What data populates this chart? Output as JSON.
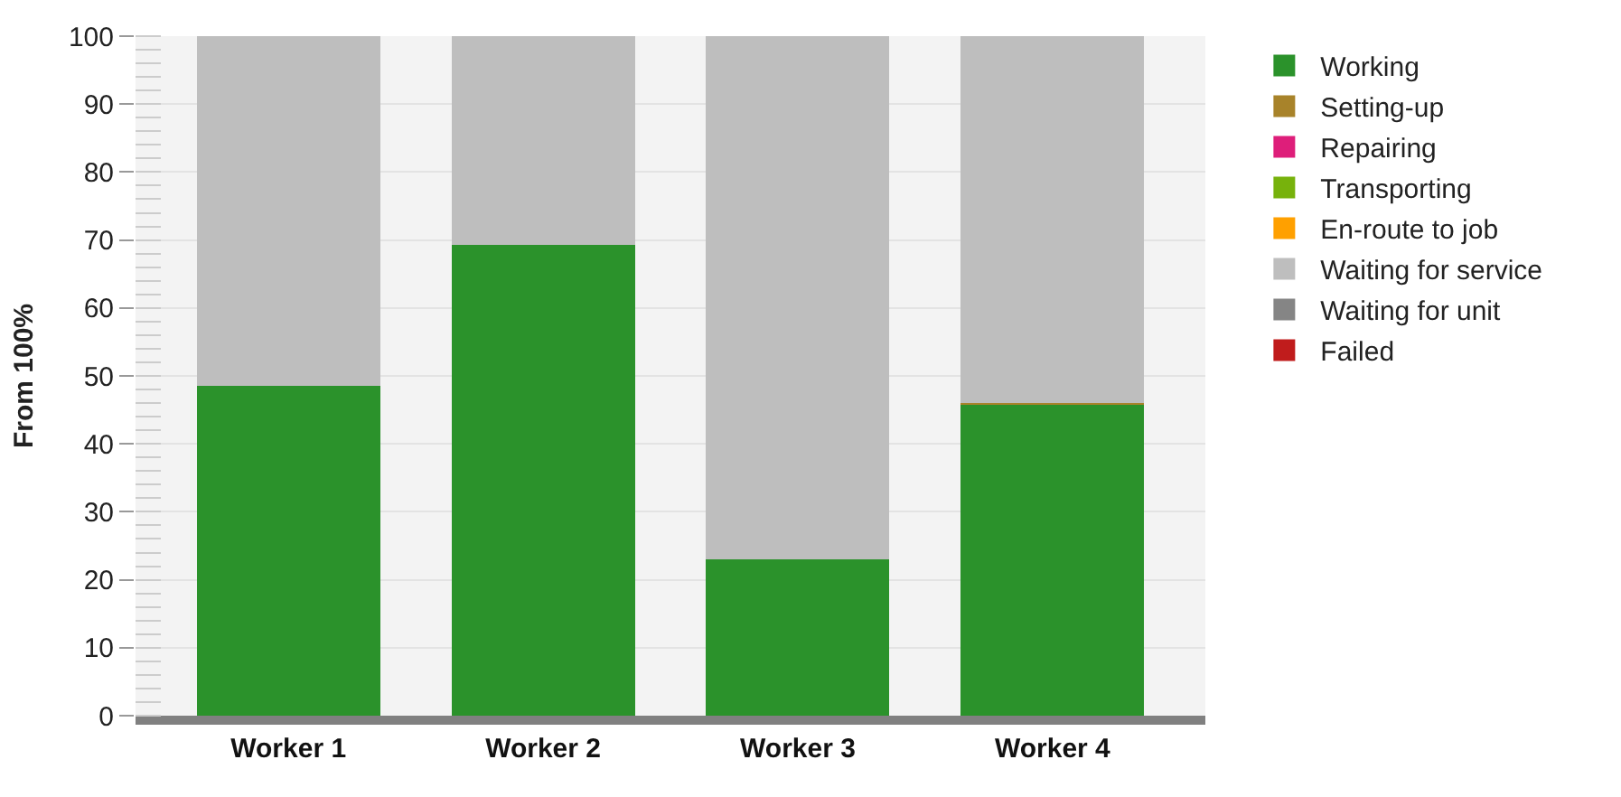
{
  "chart_data": {
    "type": "bar",
    "stacked": true,
    "ylabel": "From 100%",
    "categories": [
      "Worker 1",
      "Worker 2",
      "Worker 3",
      "Worker 4"
    ],
    "series": [
      {
        "name": "Working",
        "color": "#2b922b",
        "values": [
          48.5,
          69.3,
          23.0,
          45.8
        ]
      },
      {
        "name": "Setting-up",
        "color": "#a8832a",
        "values": [
          0,
          0,
          0,
          0.2
        ]
      },
      {
        "name": "Repairing",
        "color": "#de1e7a",
        "values": [
          0,
          0,
          0,
          0
        ]
      },
      {
        "name": "Transporting",
        "color": "#77b20c",
        "values": [
          0,
          0,
          0,
          0
        ]
      },
      {
        "name": "En-route to job",
        "color": "#ffa000",
        "values": [
          0,
          0,
          0,
          0
        ]
      },
      {
        "name": "Waiting for service",
        "color": "#bebebe",
        "values": [
          51.5,
          30.7,
          77.0,
          54.0
        ]
      },
      {
        "name": "Waiting for unit",
        "color": "#858585",
        "values": [
          0,
          0,
          0,
          0
        ]
      },
      {
        "name": "Failed",
        "color": "#c01c1c",
        "values": [
          0,
          0,
          0,
          0
        ]
      }
    ],
    "ylim": [
      0,
      100
    ],
    "yticks": [
      0,
      10,
      20,
      30,
      40,
      50,
      60,
      70,
      80,
      90,
      100
    ],
    "grid": true,
    "legend": "top right"
  }
}
